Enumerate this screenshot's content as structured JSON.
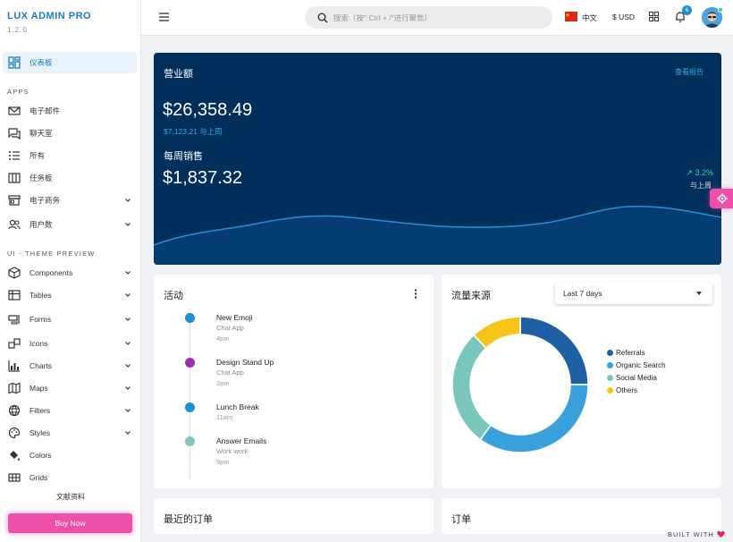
{
  "sidebar": {
    "brand": "LUX ADMIN PRO",
    "version": "1.2.0",
    "dashboard_label": "仪表板",
    "apps_title": "APPS",
    "apps": [
      "电子邮件",
      "聊天室",
      "所有",
      "任务板",
      "电子商务",
      "用户数"
    ],
    "theme_title": "UI - THEME PREVIEW",
    "theme_items": [
      "Components",
      "Tables",
      "Forms",
      "Icons",
      "Charts",
      "Maps",
      "Filters",
      "Styles",
      "Colors",
      "Grids"
    ],
    "docs_label": "文献资料",
    "buy_label": "Buy Now"
  },
  "topbar": {
    "search_placeholder": "搜索（按\" Ctrl + /\"进行聚焦）",
    "language": "中文",
    "currency": "$ USD",
    "notification_count": "6"
  },
  "revenue": {
    "title": "营业额",
    "report_link": "查看报告",
    "amount": "$26,358.49",
    "compare": "$7,123.21 与上周",
    "week_title": "每周销售",
    "week_amount": "$1,837.32",
    "growth": "3.2%",
    "growth_sub": "与上周"
  },
  "activity": {
    "title": "活动",
    "items": [
      {
        "title": "New Emoji",
        "sub": "Chat App",
        "time": "4pm",
        "color": "#1a90d0"
      },
      {
        "title": "Design Stand Up",
        "sub": "Chat App",
        "time": "2pm",
        "color": "#9b2fae"
      },
      {
        "title": "Lunch Break",
        "sub": "",
        "time": "11am",
        "color": "#1a90d0"
      },
      {
        "title": "Answer Emails",
        "sub": "Work work",
        "time": "9pm",
        "color": "#7cc8bd"
      }
    ]
  },
  "traffic": {
    "title": "流量来源",
    "range": "Last 7 days"
  },
  "chart_data": {
    "type": "pie",
    "title": "",
    "donut": true,
    "categories": [
      "Referrals",
      "Organic Search",
      "Social Media",
      "Others"
    ],
    "values": [
      25,
      35,
      28,
      12
    ],
    "colors": [
      "#1f5fa6",
      "#3aa0dc",
      "#78c6bc",
      "#f5c518"
    ],
    "legend_position": "right"
  },
  "bottom": {
    "recent_orders_title": "最近的订单",
    "orders_title": "订单",
    "built_with": "BUILT WITH"
  },
  "colors": {
    "brand": "#1a7fc0",
    "accent_pink": "#ee4fa8",
    "revenue_bg": "#012f5c",
    "positive": "#2fd5a9"
  }
}
